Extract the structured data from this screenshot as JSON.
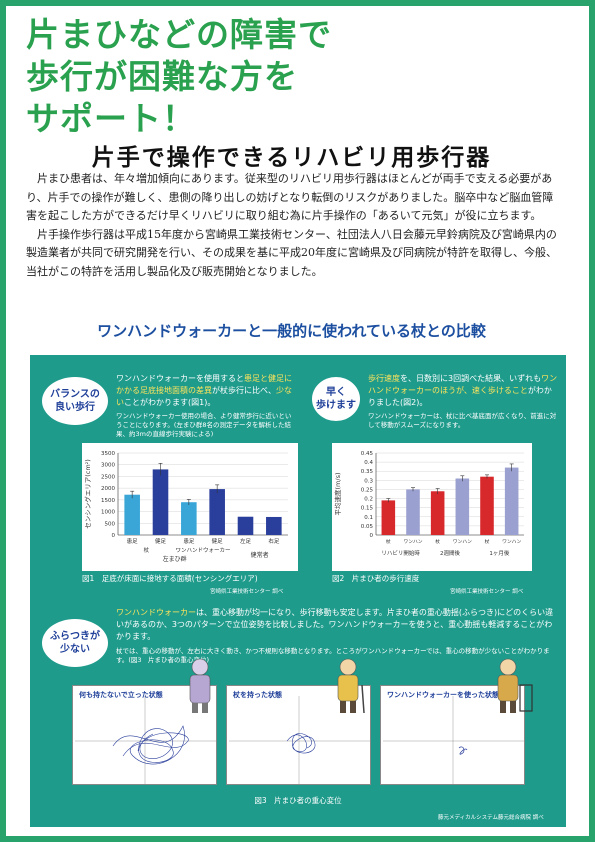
{
  "headline": [
    "片まひなどの障害で",
    "歩行が困難な方を",
    "サポート！"
  ],
  "subtitle": "片手で操作できるリハビリ用歩行器",
  "paragraphs": [
    "片まひ患者は、年々増加傾向にあります。従来型のリハビリ用歩行器はほとんどが両手で支える必要があり、片手での操作が難しく、患側の降り出しの妨げとなり転倒のリスクがありました。脳卒中など脳血管障害を起こした方ができるだけ早くリハビリに取り組む為に片手操作の「あるいて元気」が役に立ちます。",
    "片手操作歩行器は平成15年度から宮崎県工業技術センター、社団法人八日会藤元早鈴病院及び宮崎県内の製造業者が共同で研究開発を行い、その成果を基に平成20年度に宮崎県及び同病院が特許を取得し、今般、当社がこの特許を活用し製品化及び販売開始となりました。"
  ],
  "compare_title": "ワンハンドウォーカーと一般的に使われている杖との比較",
  "balance": {
    "bubble": [
      "バランスの",
      "良い歩行"
    ],
    "text_a": "ワンハンドウォーカーを使用すると",
    "text_b": "患足と健足にかかる足底接地面積の差異",
    "text_c": "が杖歩行に比べ、",
    "text_d": "少ない",
    "text_e": "ことがわかります(図1)。",
    "note": "ワンハンドウォーカー使用の場合、より健常歩行に近いということになります。(左まひ群8名の測定データを解析した結果、約3mの直線歩行実験による)"
  },
  "speed": {
    "bubble": [
      "早く",
      "歩けます"
    ],
    "text_a": "歩行速度",
    "text_b": "を、日数別に3回調べた結果、いずれも",
    "text_c": "ワンハンドウォーカーのほうが、速く歩けること",
    "text_d": "がわかりました(図2)。",
    "note": "ワンハンドウォーカーは、杖に比べ基底面が広くなり、前進に対して移動がスムーズになります。"
  },
  "sway": {
    "bubble": [
      "ふらつきが",
      "少ない"
    ],
    "text_a": "ワンハンドウォーカー",
    "text_b": "は、重心移動が均一になり、歩行移動も安定します。片まひ者の重心動揺(ふらつき)にどのくらい違いがあるのか、3つのパターンで立位姿勢を比較しました。ワンハンドウォーカーを使うと、重心動揺も軽減することがわかります。",
    "note": "杖では、重心の移動が、左右に大きく動き、かつ不規則な移動となります。ところがワンハンドウォーカーでは、重心の移動が少ないことがわかります。(図3　片まひ者の重心変位)"
  },
  "fig1_caption": "図1　足底が床面に接地する面積(センシングエリア)",
  "fig1_credit": "宮崎県工業技術センター 調べ",
  "fig2_caption": "図2　片まひ者の歩行速度",
  "fig2_credit": "宮崎県工業技術センター 調べ",
  "fig3_caption": "図3　片まひ者の重心変位",
  "fig3_credit": "藤元メディカルシステム藤元総合病院 調べ",
  "trace_labels": [
    "何も持たないで立った状態",
    "杖を持った状態",
    "ワンハンドウォーカーを使った状態"
  ],
  "chart_data": [
    {
      "type": "bar",
      "ylabel": "センシングエリア(cm²)",
      "ylim": [
        0,
        3500
      ],
      "yticks": [
        0,
        500,
        1000,
        1500,
        2000,
        2500,
        3000,
        3500
      ],
      "categories": [
        "患足",
        "健足",
        "患足",
        "健足",
        "左足",
        "右足"
      ],
      "groups": [
        "杖",
        "ワンハンドウォーカー"
      ],
      "group_labels": [
        "左まひ群",
        "健常者"
      ],
      "values": [
        1720,
        2800,
        1400,
        1960,
        780,
        770
      ],
      "errors": [
        150,
        260,
        120,
        180,
        0,
        0
      ],
      "colors": [
        "#3aa6d8",
        "#2a3f9c",
        "#3aa6d8",
        "#2a3f9c",
        "#2a3f9c",
        "#2a3f9c"
      ]
    },
    {
      "type": "bar",
      "ylabel": "平均速度(m/s)",
      "ylim": [
        0,
        0.45
      ],
      "yticks": [
        0,
        0.05,
        0.1,
        0.15,
        0.2,
        0.25,
        0.3,
        0.35,
        0.4,
        0.45
      ],
      "categories": [
        "杖",
        "ワンハンドウォーカー",
        "杖",
        "ワンハンドウォーカー",
        "杖",
        "ワンハンドウォーカー"
      ],
      "groups": [
        "リハビリ開始時",
        "2週間後",
        "1ヶ月後"
      ],
      "values": [
        0.19,
        0.25,
        0.24,
        0.31,
        0.32,
        0.37
      ],
      "errors": [
        0.01,
        0.01,
        0.015,
        0.015,
        0.01,
        0.02
      ],
      "colors": [
        "#d7282c",
        "#9aa0cf",
        "#d7282c",
        "#9aa0cf",
        "#d7282c",
        "#9aa0cf"
      ]
    }
  ]
}
